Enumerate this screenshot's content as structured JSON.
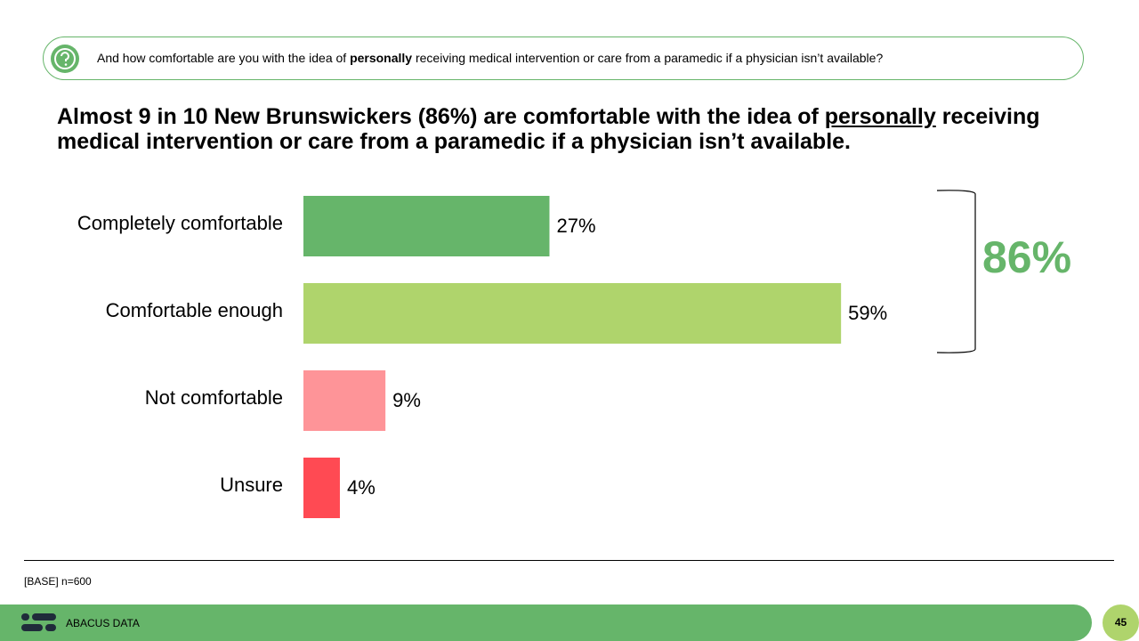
{
  "question": [
    "And how comfortable are you with the idea of ",
    "personally",
    " receiving medical intervention or care from a paramedic if a physician isn’t available?"
  ],
  "headline": [
    "Almost 9 in 10 New Brunswickers (86%) are comfortable with the idea of ",
    "personally",
    " receiving medical intervention or care from a paramedic if a physician isn’t available."
  ],
  "chart_data": {
    "type": "bar",
    "orientation": "horizontal",
    "categories": [
      "Completely comfortable",
      "Comfortable enough",
      "Not comfortable",
      "Unsure"
    ],
    "values": [
      27,
      59,
      9,
      4
    ],
    "value_labels": [
      "27%",
      "59%",
      "9%",
      "4%"
    ],
    "colors": [
      "#66b56a",
      "#afd46c",
      "#fe9498",
      "#ff4a53"
    ],
    "annotation": "86%",
    "annotation_color": "#66b56a"
  },
  "footer": {
    "base": "[BASE] n=600",
    "brand": "ABACUS DATA",
    "page": "45"
  }
}
